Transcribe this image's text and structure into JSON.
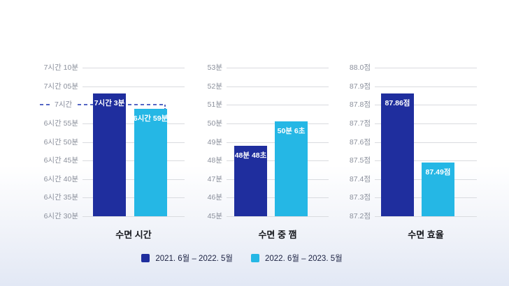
{
  "page": {
    "background_top": "#ffffff",
    "background_bottom": "#e2e8f5"
  },
  "legend": {
    "items": [
      {
        "label": "2021. 6월 – 2022. 5월",
        "color": "#1f2e9e"
      },
      {
        "label": "2022. 6월 – 2023. 5월",
        "color": "#25b7e5"
      }
    ]
  },
  "reference_color": "#5566c4",
  "chart_data": [
    {
      "type": "bar",
      "title": "수면 시간",
      "value_unit": "minutes",
      "axis": {
        "min": 390,
        "max": 430
      },
      "ticks": [
        {
          "value": 430,
          "label": "7시간 10분"
        },
        {
          "value": 425,
          "label": "7시간 05분"
        },
        {
          "value": 420,
          "label": "7시간",
          "dashed": true
        },
        {
          "value": 415,
          "label": "6시간 55분"
        },
        {
          "value": 410,
          "label": "6시간 50분"
        },
        {
          "value": 405,
          "label": "6시간 45분"
        },
        {
          "value": 400,
          "label": "6시간 40분"
        },
        {
          "value": 395,
          "label": "6시간 35분"
        },
        {
          "value": 390,
          "label": "6시간 30분"
        }
      ],
      "bars": [
        {
          "series": "2021. 6월 – 2022. 5월",
          "value": 423,
          "label": "7시간 3분"
        },
        {
          "series": "2022. 6월 – 2023. 5월",
          "value": 419,
          "label": "6시간 59분"
        }
      ]
    },
    {
      "type": "bar",
      "title": "수면 중 깸",
      "value_unit": "minutes",
      "axis": {
        "min": 45,
        "max": 53
      },
      "ticks": [
        {
          "value": 53,
          "label": "53분"
        },
        {
          "value": 52,
          "label": "52분"
        },
        {
          "value": 51,
          "label": "51분"
        },
        {
          "value": 50,
          "label": "50분"
        },
        {
          "value": 49,
          "label": "49분"
        },
        {
          "value": 48,
          "label": "48분"
        },
        {
          "value": 47,
          "label": "47분"
        },
        {
          "value": 46,
          "label": "46분"
        },
        {
          "value": 45,
          "label": "45분"
        }
      ],
      "bars": [
        {
          "series": "2021. 6월 – 2022. 5월",
          "value": 48.8,
          "label": "48분 48초"
        },
        {
          "series": "2022. 6월 – 2023. 5월",
          "value": 50.1,
          "label": "50분 6초"
        }
      ]
    },
    {
      "type": "bar",
      "title": "수면 효율",
      "value_unit": "points",
      "axis": {
        "min": 87.2,
        "max": 88.0
      },
      "ticks": [
        {
          "value": 88.0,
          "label": "88.0점"
        },
        {
          "value": 87.9,
          "label": "87.9점"
        },
        {
          "value": 87.8,
          "label": "87.8점"
        },
        {
          "value": 87.7,
          "label": "87.7점"
        },
        {
          "value": 87.6,
          "label": "87.6점"
        },
        {
          "value": 87.5,
          "label": "87.5점"
        },
        {
          "value": 87.4,
          "label": "87.4점"
        },
        {
          "value": 87.3,
          "label": "87.3점"
        },
        {
          "value": 87.2,
          "label": "87.2점"
        }
      ],
      "bars": [
        {
          "series": "2021. 6월 – 2022. 5월",
          "value": 87.86,
          "label": "87.86점"
        },
        {
          "series": "2022. 6월 – 2023. 5월",
          "value": 87.49,
          "label": "87.49점"
        }
      ]
    }
  ]
}
